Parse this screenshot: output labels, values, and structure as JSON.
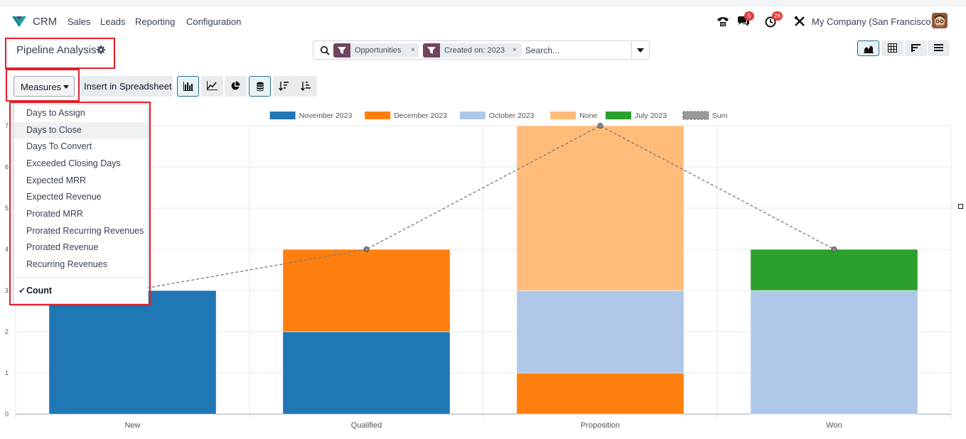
{
  "navbar": {
    "brand": "CRM",
    "menu": [
      "Sales",
      "Leads",
      "Reporting",
      "Configuration"
    ],
    "chat_badge": "5",
    "activity_badge": "26",
    "company": "My Company (San Francisco)"
  },
  "control_panel": {
    "title": "Pipeline Analysis",
    "facets": [
      {
        "label": "Opportunities"
      },
      {
        "label": "Created on: 2023"
      }
    ],
    "facet_remove": "×",
    "search_placeholder": "Search...",
    "measures_label": "Measures",
    "spreadsheet_label": "Insert in Spreadsheet"
  },
  "measures_menu": {
    "items": [
      "Days to Assign",
      "Days to Close",
      "Days To Convert",
      "Exceeded Closing Days",
      "Expected MRR",
      "Expected Revenue",
      "Prorated MRR",
      "Prorated Recurring Revenues",
      "Prorated Revenue",
      "Recurring Revenues"
    ],
    "hovered_item": "Days to Close",
    "checked_item": "Count",
    "check_mark": "✔"
  },
  "chart_data": {
    "type": "bar",
    "stacked": true,
    "categories": [
      "New",
      "Qualified",
      "Proposition",
      "Won"
    ],
    "series": [
      {
        "name": "November 2023",
        "color": "#1f77b4",
        "values": [
          3,
          2,
          0,
          0
        ]
      },
      {
        "name": "December 2023",
        "color": "#ff7f0e",
        "values": [
          0,
          2,
          1,
          0
        ]
      },
      {
        "name": "October 2023",
        "color": "#aec7e8",
        "values": [
          0,
          0,
          2,
          3
        ]
      },
      {
        "name": "None",
        "color": "#ffbb78",
        "values": [
          0,
          0,
          4,
          0
        ]
      },
      {
        "name": "July 2023",
        "color": "#2ca02c",
        "values": [
          0,
          0,
          0,
          1
        ]
      }
    ],
    "sum_line": {
      "name": "Sum",
      "color": "#7f7f7f",
      "values": [
        3,
        4,
        7,
        4
      ]
    },
    "ylim": [
      0,
      7
    ],
    "yticks": [
      "0",
      "1",
      "2",
      "3",
      "4",
      "5",
      "6",
      "7"
    ],
    "legend_position": "top",
    "grid": true
  },
  "colors": {
    "highlight_red": "#e01f2b",
    "facet_purple": "#71455f",
    "active_teal": "#2b6e86"
  }
}
